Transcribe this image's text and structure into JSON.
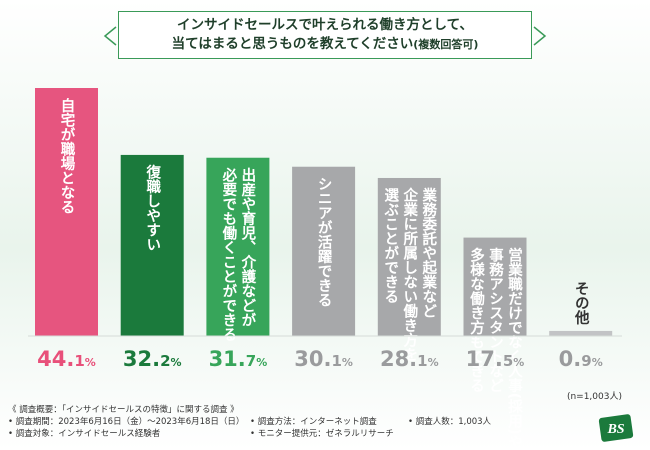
{
  "title": {
    "line1": "インサイドセールスで叶えられる働き方として、",
    "line2": "当てはまると思うものを教えてください",
    "line2_suffix": "(複数回答可)"
  },
  "colors": {
    "accent_green": "#3a9a58",
    "pink": "#e6557f",
    "dark_green": "#1b7a3c",
    "mid_green": "#37a55a",
    "gray": "#a7a8aa",
    "gray_light": "#c2c3c5",
    "pct_pink": "#e8507a",
    "pct_dark_green": "#1b7a3c",
    "pct_mid_green": "#37a55a",
    "pct_gray": "#9a9b9d"
  },
  "chart_data": {
    "type": "bar",
    "title": "インサイドセールスで叶えられる働き方として、当てはまると思うものを教えてください(複数回答可)",
    "ylim": [
      0,
      50
    ],
    "unit": "%",
    "categories": [
      "自宅が職場となる",
      "復職しやすい",
      "出産や育児、介護などが必要でも働くことができる",
      "シニアが活躍できる",
      "業務委託や起業など企業に所属しない働き方を選ぶことができる",
      "営業職だけでなく人事(採用)や事務アシスタントなど多様な働き方もできる",
      "その他"
    ],
    "values": [
      44.1,
      32.2,
      31.7,
      30.1,
      28.1,
      17.5,
      0.9
    ],
    "labels": [
      "44.1%",
      "32.2%",
      "31.7%",
      "30.1%",
      "28.1%",
      "17.5%",
      "0.9%"
    ],
    "bar_text_lines": [
      [
        "自宅が職場となる"
      ],
      [
        "復職しやすい"
      ],
      [
        "必要でも働くことができる",
        "出産や育児、介護などが"
      ],
      [
        "シニアが活躍できる"
      ],
      [
        "選ぶことができる",
        "企業に所属しない働き方を",
        "業務委託や起業など"
      ],
      [
        "多様な働き方もできる",
        "事務アシスタントなど",
        "営業職だけでなく人事(採用)や"
      ],
      [
        "その他"
      ]
    ]
  },
  "sample_size": "(n=1,003人)",
  "footer": {
    "overview": "《 調査概要：「インサイドセールスの特徴」に関する調査 》",
    "period": "• 調査期間：2023年6月16日（金）〜2023年6月18日（日）",
    "target": "• 調査対象：インサイドセールス経験者",
    "method": "• 調査方法：インターネット調査",
    "provider": "• モニター提供元：ゼネラルリサーチ",
    "respondents": "• 調査人数：1,003人"
  },
  "logo_text": "BS"
}
